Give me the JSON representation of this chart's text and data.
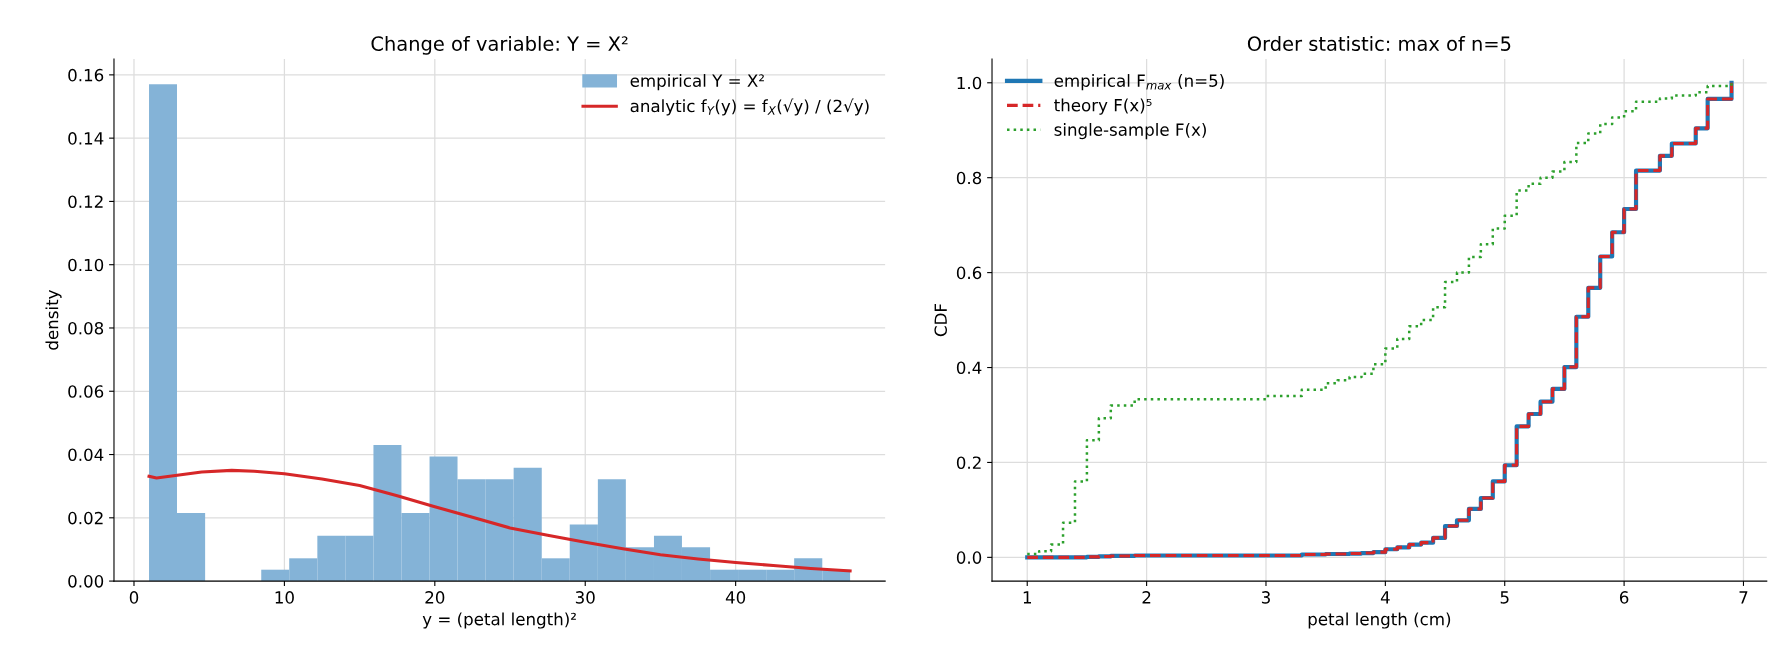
{
  "chart_data": [
    {
      "type": "histogram",
      "title": "Change of variable: Y = X²",
      "xlabel": "y = (petal length)²",
      "ylabel": "density",
      "bins": [
        1,
        2.86,
        4.73,
        6.59,
        8.46,
        10.32,
        12.19,
        14.05,
        15.92,
        17.78,
        19.65,
        21.51,
        23.38,
        25.24,
        27.11,
        28.97,
        30.84,
        32.7,
        34.57,
        36.43,
        38.3,
        40.16,
        42.03,
        43.89,
        45.76,
        47.61
      ],
      "series": [
        {
          "name": "empirical Y = X²",
          "color": "#84b3d7",
          "values": [
            0.157,
            0.0215,
            0,
            0,
            0.0036,
            0.0072,
            0.0143,
            0.0143,
            0.043,
            0.0215,
            0.0394,
            0.0322,
            0.0322,
            0.0358,
            0.0072,
            0.0179,
            0.0322,
            0.0107,
            0.0143,
            0.0107,
            0.0036,
            0.0036,
            0.0036,
            0.0072,
            0.0036
          ]
        },
        {
          "type": "line",
          "name": "analytic f$_{Y}$(y) = f$_{X}$(√y) / (2√y)",
          "color": "#d62728",
          "x": [
            1,
            1.5,
            3,
            4.5,
            6.5,
            8,
            10,
            12.5,
            15,
            17.5,
            20,
            22.5,
            25,
            27.5,
            30,
            32.5,
            35,
            37.5,
            40,
            42.5,
            45,
            47.61
          ],
          "values": [
            0.0331,
            0.0326,
            0.0335,
            0.0345,
            0.035,
            0.0347,
            0.0339,
            0.0323,
            0.0302,
            0.027,
            0.0235,
            0.0202,
            0.0168,
            0.0145,
            0.0123,
            0.0102,
            0.0083,
            0.007,
            0.0059,
            0.0049,
            0.004,
            0.0032
          ]
        }
      ],
      "xlim": [
        -1.33,
        49.94
      ],
      "xticks": [
        0,
        10,
        20,
        30,
        40
      ],
      "ylim": [
        0,
        0.165
      ],
      "yticks": [
        {
          "value": 0,
          "label": "0.00"
        },
        {
          "value": 0.02,
          "label": "0.02"
        },
        {
          "value": 0.04,
          "label": "0.04"
        },
        {
          "value": 0.06,
          "label": "0.06"
        },
        {
          "value": 0.08,
          "label": "0.08"
        },
        {
          "value": 0.1,
          "label": "0.10"
        },
        {
          "value": 0.12,
          "label": "0.12"
        },
        {
          "value": 0.14,
          "label": "0.14"
        },
        {
          "value": 0.16,
          "label": "0.16"
        }
      ],
      "grid": true,
      "legend": "top right"
    },
    {
      "type": "step",
      "title": "Order statistic: max of n=5",
      "xlabel": "petal length (cm)",
      "ylabel": "CDF",
      "x": [
        1.0,
        1.1,
        1.2,
        1.3,
        1.4,
        1.5,
        1.6,
        1.7,
        1.9,
        3.0,
        3.3,
        3.5,
        3.6,
        3.7,
        3.8,
        3.9,
        4.0,
        4.1,
        4.2,
        4.3,
        4.4,
        4.5,
        4.6,
        4.7,
        4.8,
        4.9,
        5.0,
        5.1,
        5.2,
        5.3,
        5.4,
        5.5,
        5.6,
        5.7,
        5.8,
        5.9,
        6.0,
        6.1,
        6.3,
        6.4,
        6.6,
        6.7,
        6.9
      ],
      "series": [
        {
          "name": "empirical F$_{max}$ (n=5)",
          "color": "#1f77b4",
          "line_style": "solid",
          "values": [
            0,
            0,
            0,
            0,
            0,
            0.001,
            0.002,
            0.003,
            0.004,
            0.004,
            0.006,
            0.007,
            0.007,
            0.008,
            0.009,
            0.011,
            0.017,
            0.021,
            0.027,
            0.031,
            0.041,
            0.066,
            0.078,
            0.102,
            0.125,
            0.16,
            0.194,
            0.276,
            0.302,
            0.328,
            0.355,
            0.401,
            0.507,
            0.568,
            0.634,
            0.685,
            0.734,
            0.815,
            0.846,
            0.872,
            0.904,
            0.966,
            1.0
          ]
        },
        {
          "name": "theory F(x)⁵",
          "color": "#d62728",
          "line_style": "dashed",
          "values": [
            0,
            0,
            0,
            0,
            0,
            0.001,
            0.002,
            0.003,
            0.004,
            0.004,
            0.006,
            0.007,
            0.007,
            0.008,
            0.009,
            0.011,
            0.017,
            0.021,
            0.027,
            0.031,
            0.041,
            0.066,
            0.078,
            0.102,
            0.125,
            0.16,
            0.194,
            0.276,
            0.302,
            0.328,
            0.355,
            0.401,
            0.507,
            0.568,
            0.634,
            0.685,
            0.734,
            0.815,
            0.846,
            0.872,
            0.904,
            0.966,
            1.0
          ]
        },
        {
          "name": "single-sample F(x)",
          "color": "#2ca02c",
          "line_style": "dotted",
          "values": [
            0.007,
            0.013,
            0.027,
            0.073,
            0.16,
            0.247,
            0.293,
            0.32,
            0.333,
            0.34,
            0.353,
            0.367,
            0.373,
            0.38,
            0.387,
            0.407,
            0.44,
            0.46,
            0.487,
            0.5,
            0.527,
            0.58,
            0.6,
            0.633,
            0.66,
            0.693,
            0.72,
            0.773,
            0.787,
            0.8,
            0.813,
            0.833,
            0.873,
            0.893,
            0.913,
            0.927,
            0.94,
            0.96,
            0.967,
            0.973,
            0.98,
            0.993,
            1.0
          ]
        }
      ],
      "xlim": [
        0.705,
        7.195
      ],
      "xticks": [
        1,
        2,
        3,
        4,
        5,
        6,
        7
      ],
      "ylim": [
        -0.05,
        1.05
      ],
      "yticks": [
        {
          "value": 0,
          "label": "0.0"
        },
        {
          "value": 0.2,
          "label": "0.2"
        },
        {
          "value": 0.4,
          "label": "0.4"
        },
        {
          "value": 0.6,
          "label": "0.6"
        },
        {
          "value": 0.8,
          "label": "0.8"
        },
        {
          "value": 1.0,
          "label": "1.0"
        }
      ],
      "grid": true,
      "legend": "top left"
    }
  ]
}
